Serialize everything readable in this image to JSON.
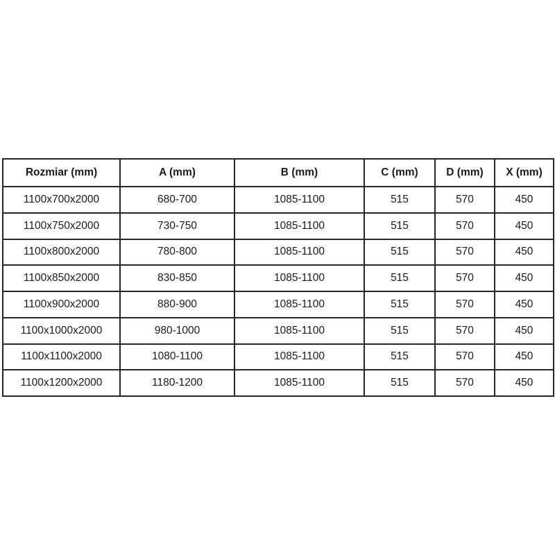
{
  "page": {
    "background_color": "#ffffff",
    "border_color": "#262626",
    "text_color": "#1a1a1a"
  },
  "table": {
    "columns": [
      "Rozmiar (mm)",
      "A (mm)",
      "B (mm)",
      "C (mm)",
      "D (mm)",
      "X (mm)"
    ],
    "rows": [
      [
        "1100x700x2000",
        "680-700",
        "1085-1100",
        "515",
        "570",
        "450"
      ],
      [
        "1100x750x2000",
        "730-750",
        "1085-1100",
        "515",
        "570",
        "450"
      ],
      [
        "1100x800x2000",
        "780-800",
        "1085-1100",
        "515",
        "570",
        "450"
      ],
      [
        "1100x850x2000",
        "830-850",
        "1085-1100",
        "515",
        "570",
        "450"
      ],
      [
        "1100x900x2000",
        "880-900",
        "1085-1100",
        "515",
        "570",
        "450"
      ],
      [
        "1100x1000x2000",
        "980-1000",
        "1085-1100",
        "515",
        "570",
        "450"
      ],
      [
        "1100x1100x2000",
        "1080-1100",
        "1085-1100",
        "515",
        "570",
        "450"
      ],
      [
        "1100x1200x2000",
        "1180-1200",
        "1085-1100",
        "515",
        "570",
        "450"
      ]
    ]
  }
}
